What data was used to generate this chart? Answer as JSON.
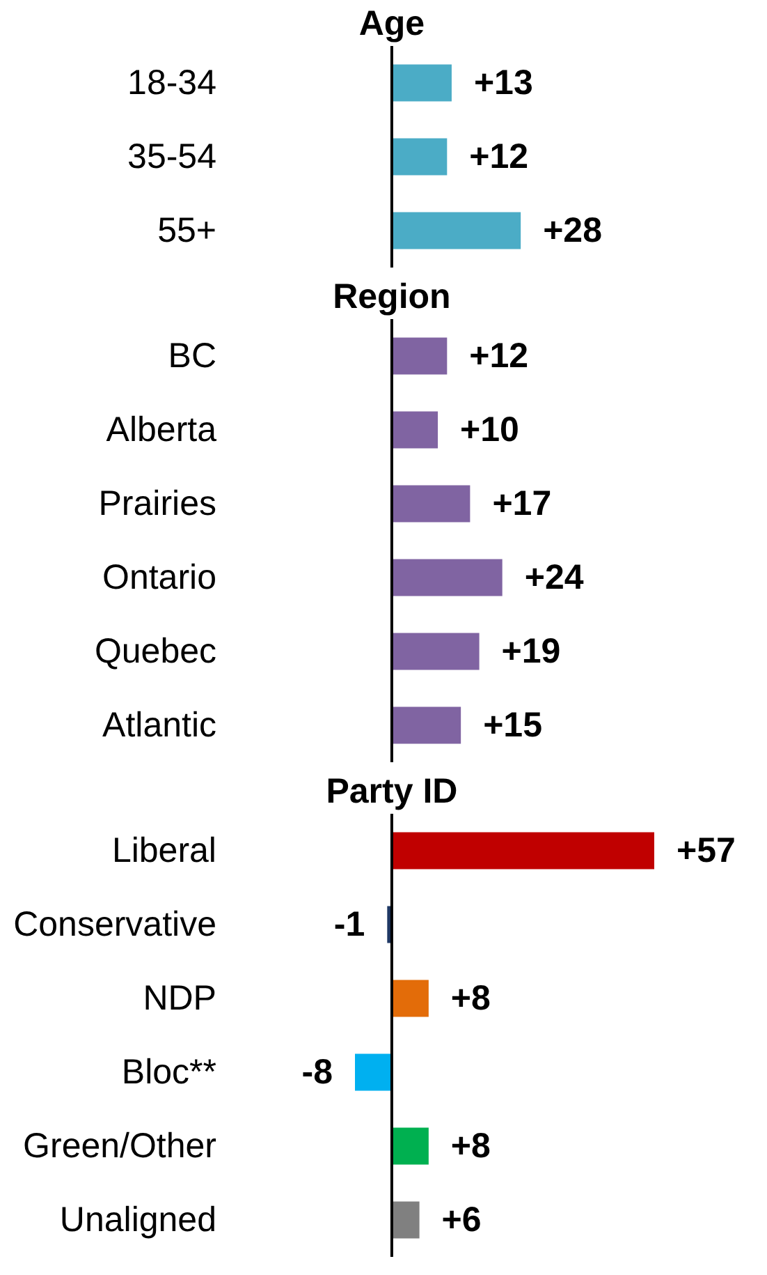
{
  "chart_data": [
    {
      "type": "bar",
      "orientation": "horizontal",
      "title": "Age",
      "categories": [
        "18-34",
        "35-54",
        "55+"
      ],
      "values": [
        13,
        12,
        28
      ],
      "value_labels": [
        "+13",
        "+12",
        "+28"
      ],
      "colors": [
        "#4bacc6",
        "#4bacc6",
        "#4bacc6"
      ]
    },
    {
      "type": "bar",
      "orientation": "horizontal",
      "title": "Region",
      "categories": [
        "BC",
        "Alberta",
        "Prairies",
        "Ontario",
        "Quebec",
        "Atlantic"
      ],
      "values": [
        12,
        10,
        17,
        24,
        19,
        15
      ],
      "value_labels": [
        "+12",
        "+10",
        "+17",
        "+24",
        "+19",
        "+15"
      ],
      "colors": [
        "#8064a2",
        "#8064a2",
        "#8064a2",
        "#8064a2",
        "#8064a2",
        "#8064a2"
      ]
    },
    {
      "type": "bar",
      "orientation": "horizontal",
      "title": "Party ID",
      "categories": [
        "Liberal",
        "Conservative",
        "NDP",
        "Bloc**",
        "Green/Other",
        "Unaligned"
      ],
      "values": [
        57,
        -1,
        8,
        -8,
        8,
        6
      ],
      "value_labels": [
        "+57",
        "-1",
        "+8",
        "-8",
        "+8",
        "+6"
      ],
      "colors": [
        "#c00000",
        "#1f3864",
        "#e36c09",
        "#00b0f0",
        "#00b050",
        "#808080"
      ]
    }
  ]
}
